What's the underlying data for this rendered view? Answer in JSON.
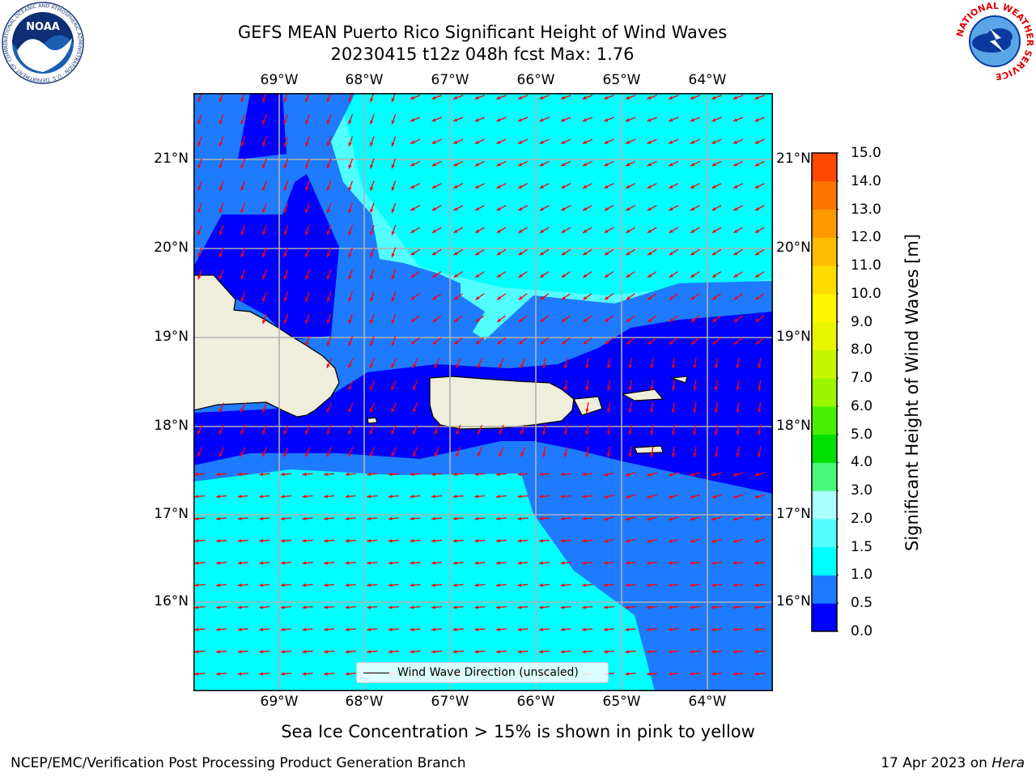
{
  "header": {
    "title_line1": "GEFS MEAN Puerto Rico Significant Height of Wind Waves",
    "title_line2": "20230415 t12z 048h fcst   Max: 1.76"
  },
  "logos": {
    "noaa_text": "NOAA",
    "noaa_ring_text": "NATIONAL OCEANIC AND ATMOSPHERIC ADMINISTRATION · U.S. DEPARTMENT OF COMMERCE ·",
    "nws_ring_text": "NATIONAL WEATHER SERVICE"
  },
  "map": {
    "lon_ticks": [
      "69°W",
      "68°W",
      "67°W",
      "66°W",
      "65°W",
      "64°W"
    ],
    "lat_ticks": [
      "21°N",
      "20°N",
      "19°N",
      "18°N",
      "17°N",
      "16°N"
    ],
    "legend_label": "Wind Wave Direction (unscaled)",
    "land_color": "#efeedd",
    "arrow_color": "#ff0000"
  },
  "colorbar": {
    "label": "Significant Height of Wind Waves [m]",
    "ticks": [
      "15.0",
      "14.0",
      "13.0",
      "12.0",
      "11.0",
      "10.0",
      "9.0",
      "8.0",
      "7.0",
      "6.0",
      "5.0",
      "4.0",
      "3.0",
      "2.0",
      "1.5",
      "1.0",
      "0.5",
      "0.0"
    ],
    "colors_bottom_to_top": [
      "#0000ff",
      "#1e7bff",
      "#00ffff",
      "#52ffff",
      "#aaffff",
      "#48fa7a",
      "#00e000",
      "#48f000",
      "#9bf500",
      "#c8f500",
      "#e8f500",
      "#fff500",
      "#ffdc00",
      "#ffbc00",
      "#ff9900",
      "#ff7400",
      "#ff4800",
      "#ff1600"
    ]
  },
  "footer": {
    "note": "Sea Ice Concentration > 15% is shown in pink to yellow",
    "credit": "NCEP/EMC/Verification Post Processing Product Generation Branch",
    "date": "17 Apr 2023 on ",
    "host": "Hera"
  }
}
